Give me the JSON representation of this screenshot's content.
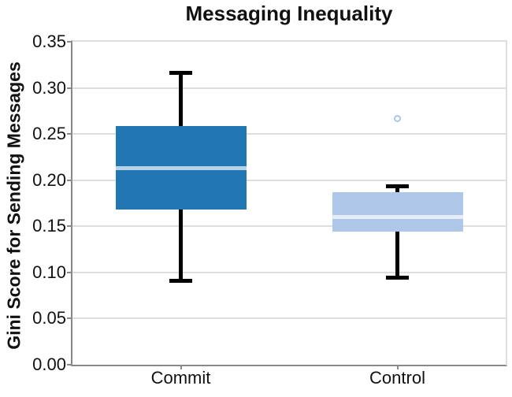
{
  "chart_data": {
    "type": "box",
    "title": "Messaging Inequality",
    "ylabel": "Gini Score for Sending Messages",
    "xlabel": "",
    "ylim": [
      0,
      0.35
    ],
    "yticks": [
      0.0,
      0.05,
      0.1,
      0.15,
      0.2,
      0.25,
      0.3,
      0.35
    ],
    "categories": [
      "Commit",
      "Control"
    ],
    "grid": "horizontal",
    "legend_position": "none",
    "series": [
      {
        "name": "Commit",
        "whisker_low": 0.091,
        "q1": 0.168,
        "median": 0.213,
        "q3": 0.259,
        "whisker_high": 0.316,
        "outliers": [],
        "box_color": "#2176b4"
      },
      {
        "name": "Control",
        "whisker_low": 0.094,
        "q1": 0.144,
        "median": 0.16,
        "q3": 0.187,
        "whisker_high": 0.193,
        "outliers": [
          0.267
        ],
        "box_color": "#aec7e8"
      }
    ]
  },
  "colors": {
    "whisker": "#000000",
    "median_line": "rgba(255,255,255,0.68)",
    "grid": "#dedede",
    "spine_dark": "#888888",
    "spine_light": "#dedede",
    "tick_mark": "#8a8a8a",
    "text": "#111111",
    "outlier_stroke": "#a9c6e6",
    "background": "#ffffff"
  }
}
